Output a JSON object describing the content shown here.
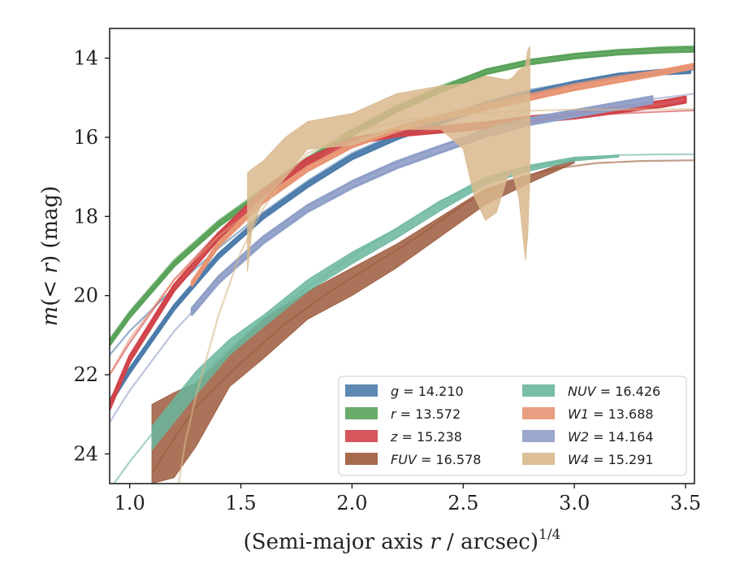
{
  "chart_data": {
    "type": "line",
    "xlabel": "(Semi-major axis r / arcsec)^{1/4}",
    "xlabel_parts": {
      "main": "(Semi-major axis ",
      "var": "r",
      "rest": " / arcsec)",
      "sup": "1/4"
    },
    "ylabel": "m(<r) (mag)",
    "ylabel_parts": {
      "pre": "m",
      "paren_open": "(",
      "var": "< r",
      "paren_close": ")",
      "unit": " (mag)"
    },
    "xlim": [
      0.91,
      3.54
    ],
    "ylim": [
      24.75,
      13.25
    ],
    "y_inverted": true,
    "xticks": [
      1.0,
      1.5,
      2.0,
      2.5,
      3.0,
      3.5
    ],
    "xtick_labels": [
      "1.0",
      "1.5",
      "2.0",
      "2.5",
      "3.0",
      "3.5"
    ],
    "yticks": [
      14,
      16,
      18,
      20,
      22,
      24
    ],
    "ytick_labels": [
      "14",
      "16",
      "18",
      "20",
      "22",
      "24"
    ],
    "grid": false,
    "legend_position": "lower-right",
    "legend_columns": 2,
    "series": [
      {
        "name": "g",
        "legend_label": "g = 14.210",
        "color": "#4c7cab",
        "band": {
          "x": [
            0.91,
            1.0,
            1.2,
            1.4,
            1.6,
            1.8,
            2.0,
            2.2,
            2.4,
            2.6,
            2.8,
            3.0,
            3.2,
            3.4,
            3.52
          ],
          "y": [
            22.7,
            21.9,
            20.3,
            19.0,
            18.0,
            17.2,
            16.5,
            16.0,
            15.6,
            15.2,
            14.9,
            14.65,
            14.45,
            14.35,
            14.32
          ],
          "err": 0.05
        },
        "model": {
          "x": [
            0.91,
            1.0,
            1.2,
            1.4,
            1.6,
            1.8,
            2.0,
            2.2,
            2.4,
            2.6,
            2.8,
            3.0,
            3.2,
            3.4,
            3.54
          ],
          "y": [
            21.5,
            20.9,
            19.8,
            18.8,
            17.9,
            17.1,
            16.4,
            15.9,
            15.5,
            15.1,
            14.8,
            14.6,
            14.45,
            14.33,
            14.3
          ]
        }
      },
      {
        "name": "r",
        "legend_label": "r = 13.572",
        "color": "#5aa35a",
        "band": {
          "x": [
            0.91,
            1.0,
            1.2,
            1.4,
            1.6,
            1.8,
            2.0,
            2.2,
            2.4,
            2.6,
            2.8,
            3.0,
            3.2,
            3.4,
            3.54
          ],
          "y": [
            21.2,
            20.5,
            19.2,
            18.2,
            17.4,
            16.6,
            15.9,
            15.3,
            14.8,
            14.35,
            14.1,
            13.95,
            13.85,
            13.8,
            13.78
          ],
          "err": 0.05
        },
        "model": {
          "x": [
            0.91,
            1.0,
            1.2,
            1.4,
            1.6,
            1.8,
            2.0,
            2.2,
            2.4,
            2.6,
            2.8,
            3.0,
            3.2,
            3.4,
            3.54
          ],
          "y": [
            21.1,
            20.4,
            19.1,
            18.1,
            17.3,
            16.5,
            15.8,
            15.2,
            14.7,
            14.3,
            14.05,
            13.9,
            13.8,
            13.72,
            13.7
          ]
        }
      },
      {
        "name": "z",
        "legend_label": "z = 15.238",
        "color": "#d0444a",
        "band": {
          "x": [
            0.91,
            1.0,
            1.2,
            1.4,
            1.6,
            1.8,
            2.0,
            2.2,
            2.4,
            2.6,
            2.8,
            3.0,
            3.2,
            3.4,
            3.5
          ],
          "y": [
            22.8,
            21.6,
            19.8,
            18.5,
            17.4,
            16.6,
            16.1,
            15.9,
            15.8,
            15.7,
            15.55,
            15.45,
            15.3,
            15.15,
            15.05
          ],
          "err": 0.07
        },
        "model": {
          "x": [
            0.91,
            1.0,
            1.2,
            1.4,
            1.6,
            1.8,
            2.0,
            2.2,
            2.4,
            2.6,
            2.8,
            3.0,
            3.2,
            3.4,
            3.54
          ],
          "y": [
            22.0,
            21.2,
            19.6,
            18.4,
            17.4,
            16.7,
            16.2,
            15.95,
            15.8,
            15.65,
            15.55,
            15.45,
            15.4,
            15.35,
            15.32
          ]
        }
      },
      {
        "name": "FUV",
        "legend_label": "FUV = 16.578",
        "color": "#9c5a3c",
        "band": {
          "x": [
            1.1,
            1.2,
            1.3,
            1.45,
            1.6,
            1.8,
            2.0,
            2.2,
            2.4,
            2.6,
            2.8,
            3.0
          ],
          "y_low": [
            22.75,
            22.45,
            22.2,
            21.4,
            20.6,
            19.9,
            19.3,
            18.7,
            18.0,
            17.3,
            16.95,
            16.55
          ],
          "y_high": [
            24.75,
            24.6,
            23.8,
            22.3,
            21.6,
            20.6,
            20.0,
            19.3,
            18.5,
            17.7,
            17.15,
            16.65
          ]
        },
        "model": {
          "x": [
            1.1,
            1.2,
            1.3,
            1.5,
            1.7,
            1.9,
            2.1,
            2.3,
            2.5,
            2.7,
            2.9,
            3.1,
            3.3,
            3.54
          ],
          "y": [
            24.5,
            23.6,
            22.8,
            21.7,
            20.7,
            19.9,
            19.2,
            18.5,
            17.7,
            17.1,
            16.8,
            16.65,
            16.6,
            16.58
          ]
        }
      },
      {
        "name": "NUV",
        "legend_label": "NUV = 16.426",
        "color": "#6ab69e",
        "band": {
          "x": [
            1.1,
            1.2,
            1.3,
            1.45,
            1.6,
            1.8,
            2.0,
            2.2,
            2.4,
            2.6,
            2.8,
            3.0,
            3.2
          ],
          "y_low": [
            23.3,
            22.6,
            21.9,
            21.1,
            20.5,
            19.6,
            18.9,
            18.3,
            17.6,
            17.0,
            16.7,
            16.5,
            16.45
          ],
          "y_high": [
            23.9,
            23.2,
            22.5,
            21.5,
            20.8,
            19.9,
            19.2,
            18.55,
            17.85,
            17.2,
            16.85,
            16.6,
            16.5
          ]
        },
        "model": {
          "x": [
            0.91,
            1.0,
            1.2,
            1.4,
            1.6,
            1.8,
            2.0,
            2.2,
            2.4,
            2.6,
            2.8,
            3.0,
            3.2,
            3.4,
            3.54
          ],
          "y": [
            24.9,
            24.2,
            22.8,
            21.6,
            20.6,
            19.8,
            19.0,
            18.3,
            17.6,
            17.1,
            16.75,
            16.55,
            16.45,
            16.43,
            16.43
          ]
        }
      },
      {
        "name": "W1",
        "legend_label": "W1 = 13.688",
        "color": "#e89473",
        "band": {
          "x": [
            1.28,
            1.4,
            1.6,
            1.8,
            2.0,
            2.2,
            2.4,
            2.6,
            2.8,
            3.0,
            3.2,
            3.4,
            3.54
          ],
          "y": [
            19.7,
            18.7,
            17.6,
            16.8,
            16.2,
            15.8,
            15.5,
            15.25,
            15.0,
            14.75,
            14.55,
            14.35,
            14.2
          ],
          "err": 0.05
        },
        "model": {
          "x": [
            0.91,
            1.0,
            1.2,
            1.4,
            1.6,
            1.8,
            2.0,
            2.2,
            2.4,
            2.6,
            2.8,
            3.0,
            3.2,
            3.4,
            3.54
          ],
          "y": [
            22.0,
            21.1,
            19.6,
            18.5,
            17.6,
            16.85,
            16.25,
            15.8,
            15.45,
            15.15,
            14.9,
            14.65,
            14.45,
            14.3,
            14.2
          ]
        }
      },
      {
        "name": "W2",
        "legend_label": "W2 = 14.164",
        "color": "#8f9fc8",
        "band": {
          "x": [
            1.28,
            1.4,
            1.6,
            1.8,
            2.0,
            2.2,
            2.4,
            2.6,
            2.8,
            3.0,
            3.2,
            3.35
          ],
          "y": [
            20.4,
            19.6,
            18.6,
            17.8,
            17.2,
            16.7,
            16.3,
            15.9,
            15.6,
            15.4,
            15.2,
            15.05
          ],
          "err": 0.08
        },
        "model": {
          "x": [
            0.91,
            1.0,
            1.2,
            1.4,
            1.6,
            1.8,
            2.0,
            2.2,
            2.4,
            2.6,
            2.8,
            3.0,
            3.2,
            3.4,
            3.54
          ],
          "y": [
            23.2,
            22.4,
            20.9,
            19.7,
            18.6,
            17.8,
            17.1,
            16.6,
            16.2,
            15.85,
            15.55,
            15.35,
            15.15,
            15.0,
            14.9
          ]
        }
      },
      {
        "name": "W4",
        "legend_label": "W4 = 15.291",
        "color": "#d9b98d",
        "band": {
          "x": [
            1.53,
            1.55,
            1.6,
            1.7,
            1.8,
            2.0,
            2.2,
            2.4,
            2.5,
            2.55,
            2.6,
            2.65,
            2.7,
            2.72,
            2.75,
            2.78,
            2.79,
            2.8,
            2.8
          ],
          "y_low": [
            19.4,
            18.3,
            17.6,
            17.0,
            16.3,
            16.2,
            15.8,
            15.8,
            16.3,
            17.5,
            18.1,
            17.9,
            17.0,
            16.9,
            17.5,
            19.1,
            18.5,
            17.0,
            15.5
          ],
          "y_high": [
            16.9,
            16.8,
            16.6,
            16.0,
            15.6,
            15.4,
            14.9,
            14.7,
            14.65,
            14.55,
            14.45,
            14.5,
            14.55,
            14.5,
            14.3,
            14.2,
            13.8,
            13.7,
            15.0
          ]
        },
        "model": {
          "x": [
            1.22,
            1.25,
            1.3,
            1.4,
            1.5,
            1.6,
            1.7,
            1.8,
            2.0,
            2.2,
            2.4,
            2.6,
            2.8,
            3.0,
            3.2,
            3.4,
            3.54
          ],
          "y": [
            24.75,
            23.7,
            22.5,
            20.5,
            18.9,
            17.8,
            17.0,
            16.4,
            15.9,
            15.6,
            15.45,
            15.38,
            15.33,
            15.3,
            15.3,
            15.29,
            15.29
          ]
        }
      }
    ]
  }
}
